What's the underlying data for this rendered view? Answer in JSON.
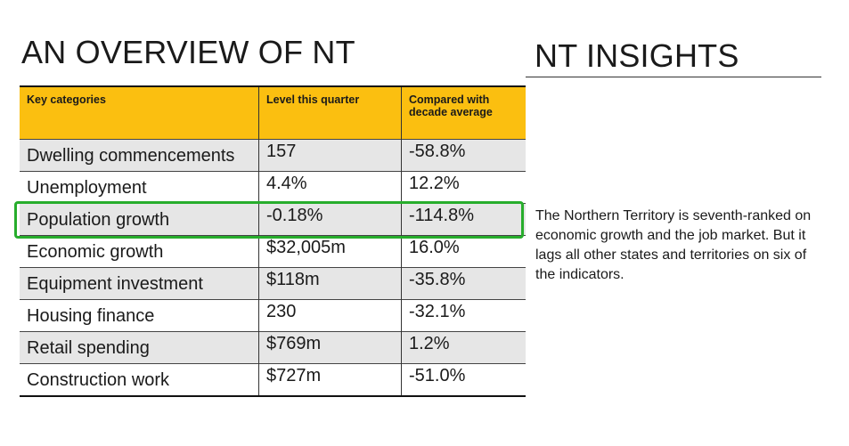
{
  "left_title": "AN OVERVIEW OF NT",
  "right_title": "NT INSIGHTS",
  "table": {
    "headers": [
      "Key categories",
      "Level this quarter",
      "Compared with decade average"
    ],
    "rows": [
      {
        "category": "Dwelling commencements",
        "level": "157",
        "compared": "-58.8%"
      },
      {
        "category": "Unemployment",
        "level": "4.4%",
        "compared": "12.2%"
      },
      {
        "category": "Population growth",
        "level": "-0.18%",
        "compared": "-114.8%"
      },
      {
        "category": "Economic growth",
        "level": "$32,005m",
        "compared": "16.0%"
      },
      {
        "category": "Equipment investment",
        "level": "$118m",
        "compared": "-35.8%"
      },
      {
        "category": "Housing finance",
        "level": "230",
        "compared": "-32.1%"
      },
      {
        "category": "Retail spending",
        "level": "$769m",
        "compared": "1.2%"
      },
      {
        "category": "Construction work",
        "level": "$727m",
        "compared": "-51.0%"
      }
    ],
    "highlighted_row": "Population growth"
  },
  "insight_text": "The Northern Territory is seventh-ranked on economic growth and the job market. But it lags all other states and territories on six of the indicators.",
  "colors": {
    "header": "#fbbf10",
    "highlight": "#27ad2c",
    "shade": "#e6e6e6"
  }
}
